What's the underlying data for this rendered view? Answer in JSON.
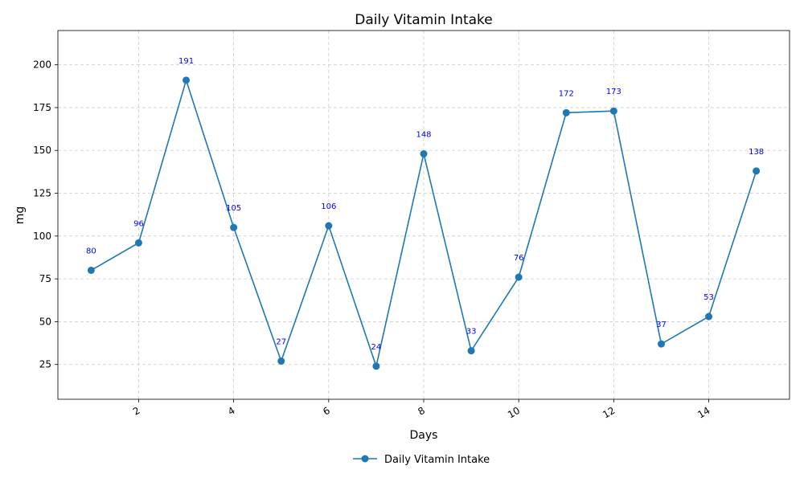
{
  "chart_data": {
    "type": "line",
    "title": "Daily Vitamin Intake",
    "xlabel": "Days",
    "ylabel": "mg",
    "x": [
      1,
      2,
      3,
      4,
      5,
      6,
      7,
      8,
      9,
      10,
      11,
      12,
      13,
      14,
      15
    ],
    "series": [
      {
        "name": "Daily Vitamin Intake",
        "values": [
          80,
          96,
          191,
          105,
          27,
          106,
          24,
          148,
          33,
          76,
          172,
          173,
          37,
          53,
          138
        ],
        "color": "#1f77b4"
      }
    ],
    "xlim": [
      0.3,
      15.7
    ],
    "ylim": [
      4.7,
      220
    ],
    "xticks": [
      2,
      4,
      6,
      8,
      10,
      12,
      14
    ],
    "yticks": [
      25,
      50,
      75,
      100,
      125,
      150,
      175,
      200
    ],
    "xtick_rotation": 30,
    "grid": true,
    "legend_position": "bottom-center",
    "data_label_color": "#0000ff"
  }
}
